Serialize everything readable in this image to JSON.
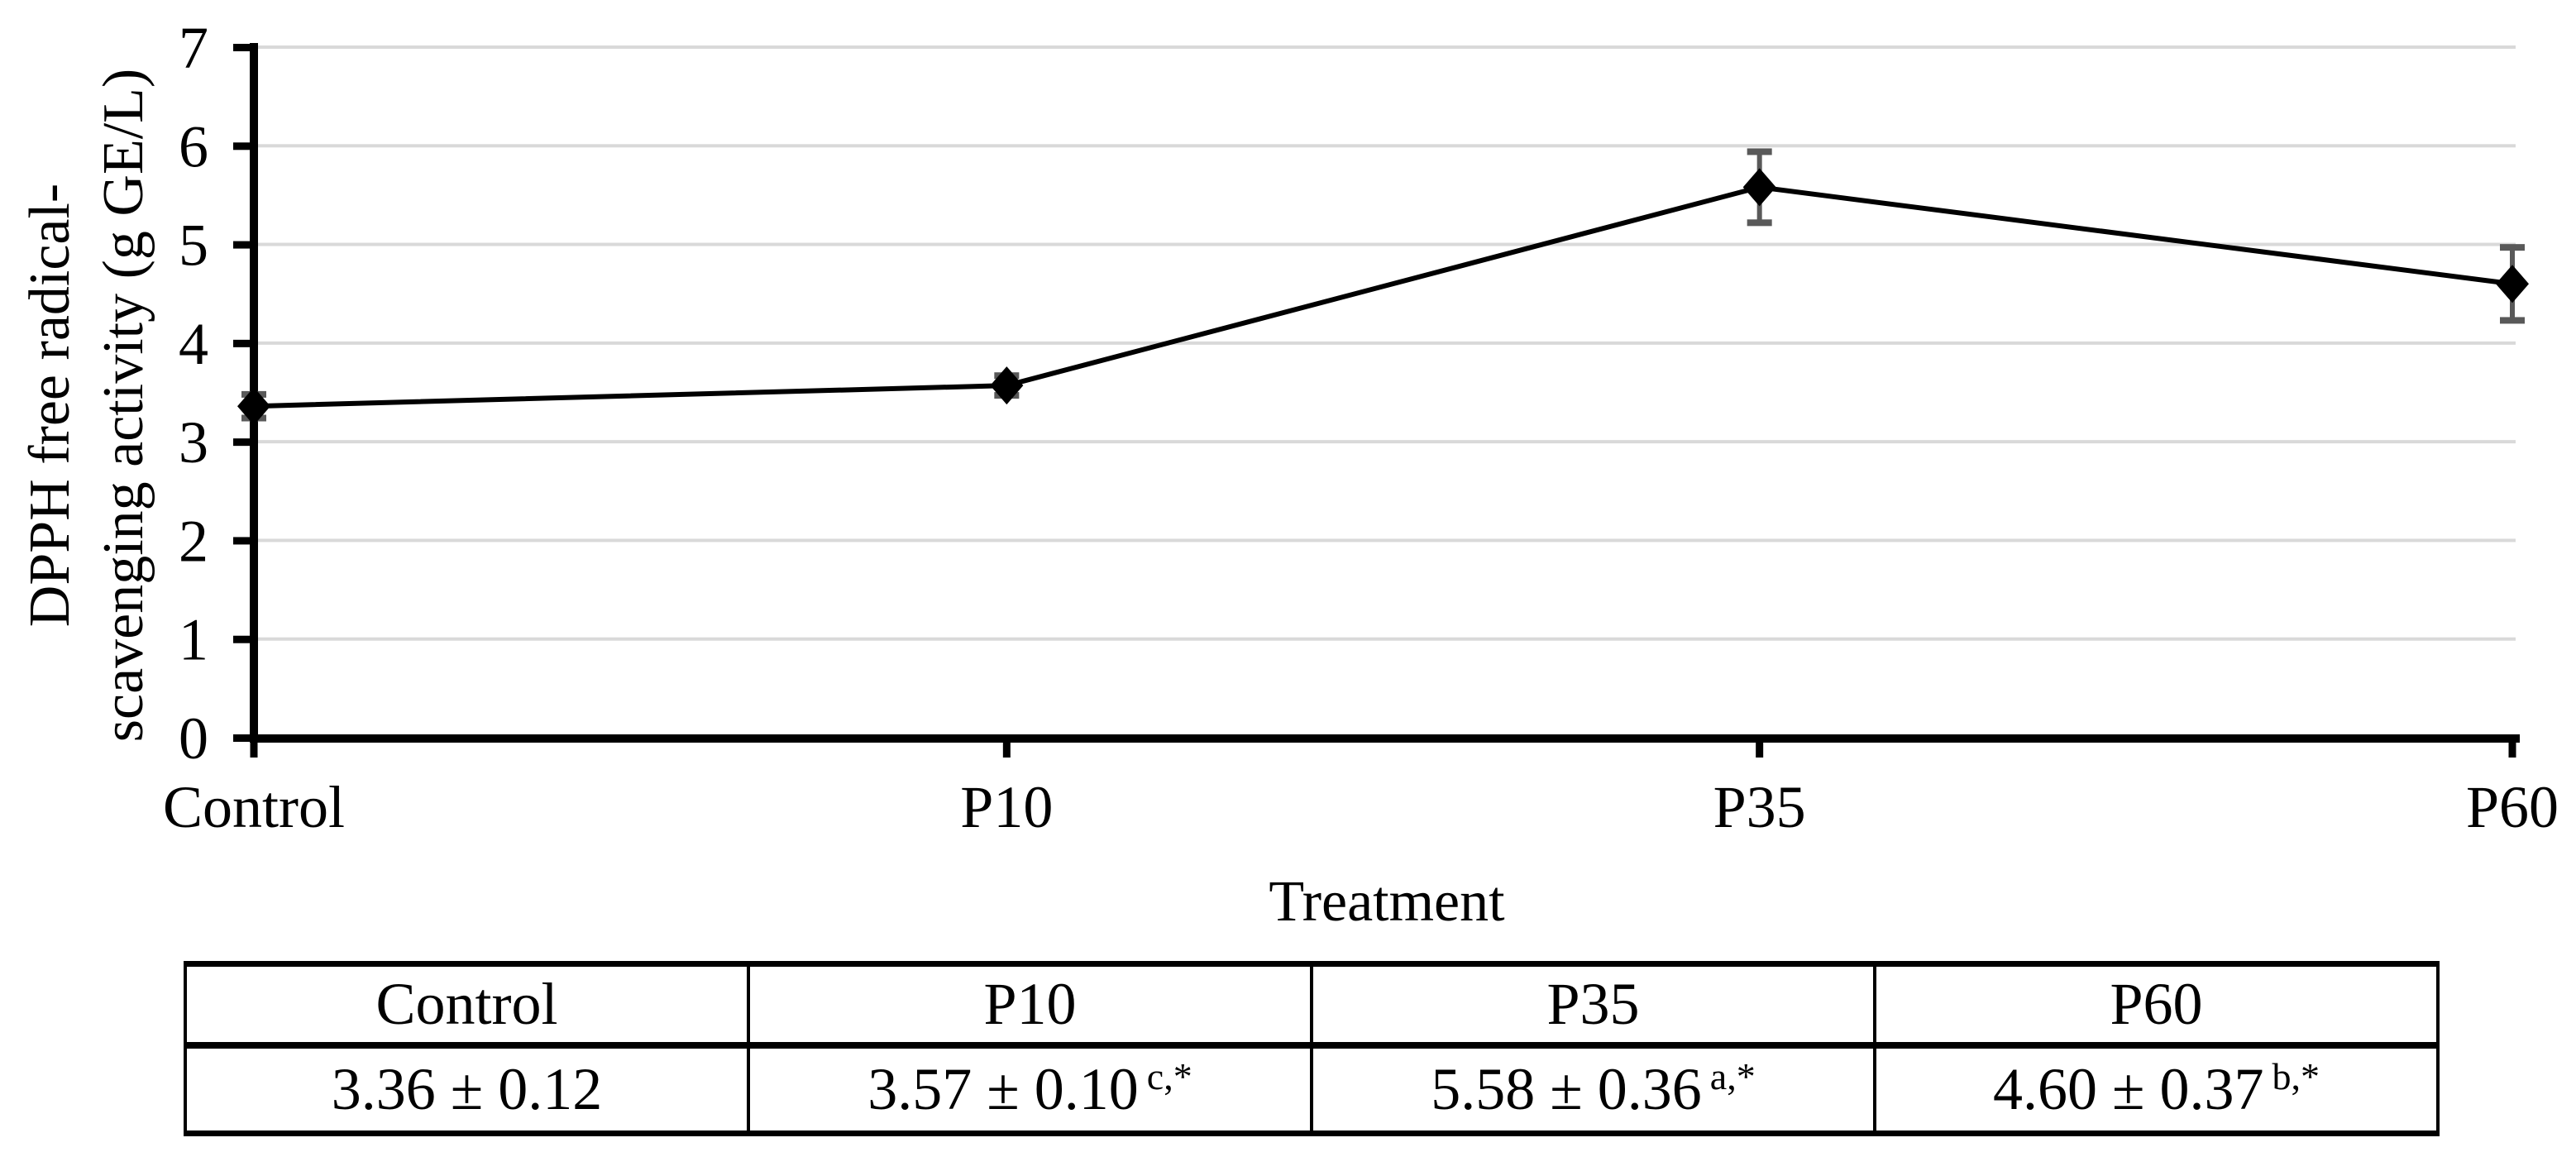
{
  "chart_data": {
    "type": "line",
    "title": "",
    "categories": [
      "Control",
      "P10",
      "P35",
      "P60"
    ],
    "series": [
      {
        "name": "DPPH free radical-scavenging activity",
        "values": [
          3.36,
          3.57,
          5.58,
          4.6
        ],
        "errors": [
          0.12,
          0.1,
          0.36,
          0.37
        ]
      }
    ],
    "xlabel": "Treatment",
    "ylabel": "DPPH free radical-scavenging activity (g GE/L)",
    "ylabel_lines": [
      "DPPH free radical-",
      "scavenging activity (g GE/L)"
    ],
    "ylim": [
      0,
      7
    ],
    "yticks": [
      0,
      1,
      2,
      3,
      4,
      5,
      6,
      7
    ],
    "grid": "horizontal-only",
    "legend": "none",
    "marker": "diamond",
    "line_color": "#000000",
    "marker_color": "#000000",
    "error_bar_color": "#595959",
    "gridline_color": "#d9d9d9",
    "axis_color": "#000000",
    "text_color": "#000000",
    "background_color": "#ffffff"
  },
  "table": {
    "headers": [
      "Control",
      "P10",
      "P35",
      "P60"
    ],
    "rows": [
      [
        {
          "value": "3.36 ± 0.12",
          "sup": ""
        },
        {
          "value": "3.57 ± 0.10",
          "sup": "c,*"
        },
        {
          "value": "5.58 ± 0.36",
          "sup": "a,*"
        },
        {
          "value": "4.60 ± 0.37",
          "sup": "b,*"
        }
      ]
    ]
  }
}
